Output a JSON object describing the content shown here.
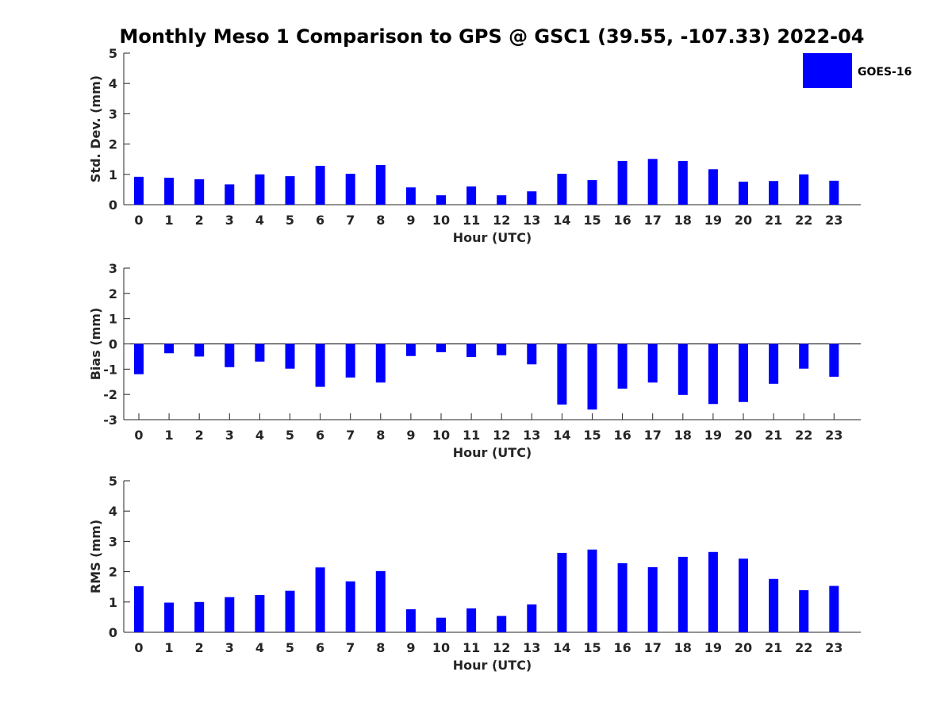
{
  "figure": {
    "title": "Monthly Meso 1 Comparison to GPS @ GSC1 (39.55, -107.33) 2022-04"
  },
  "legend": {
    "label": "GOES-16",
    "color": "#0000ff"
  },
  "chart_data": [
    {
      "type": "bar",
      "xlabel": "Hour (UTC)",
      "ylabel": "Std. Dev. (mm)",
      "ylim": [
        0,
        5
      ],
      "yticks": [
        0,
        1,
        2,
        3,
        4,
        5
      ],
      "categories": [
        "0",
        "1",
        "2",
        "3",
        "4",
        "5",
        "6",
        "7",
        "8",
        "9",
        "10",
        "11",
        "12",
        "13",
        "14",
        "15",
        "16",
        "17",
        "18",
        "19",
        "20",
        "21",
        "22",
        "23"
      ],
      "series": [
        {
          "name": "GOES-16",
          "color": "#0000ff",
          "values": [
            0.92,
            0.89,
            0.84,
            0.67,
            1.0,
            0.94,
            1.28,
            1.02,
            1.31,
            0.57,
            0.31,
            0.6,
            0.31,
            0.44,
            1.02,
            0.81,
            1.44,
            1.51,
            1.44,
            1.17,
            0.76,
            0.78,
            1.0,
            0.79
          ]
        }
      ]
    },
    {
      "type": "bar",
      "xlabel": "Hour (UTC)",
      "ylabel": "Bias (mm)",
      "ylim": [
        -3,
        3
      ],
      "yticks": [
        -3,
        -2,
        -1,
        0,
        1,
        2,
        3
      ],
      "categories": [
        "0",
        "1",
        "2",
        "3",
        "4",
        "5",
        "6",
        "7",
        "8",
        "9",
        "10",
        "11",
        "12",
        "13",
        "14",
        "15",
        "16",
        "17",
        "18",
        "19",
        "20",
        "21",
        "22",
        "23"
      ],
      "series": [
        {
          "name": "GOES-16",
          "color": "#0000ff",
          "values": [
            -1.2,
            -0.37,
            -0.5,
            -0.92,
            -0.7,
            -0.98,
            -1.7,
            -1.33,
            -1.53,
            -0.48,
            -0.33,
            -0.52,
            -0.45,
            -0.81,
            -2.4,
            -2.6,
            -1.77,
            -1.53,
            -2.02,
            -2.38,
            -2.3,
            -1.58,
            -0.98,
            -1.3
          ]
        }
      ]
    },
    {
      "type": "bar",
      "xlabel": "Hour (UTC)",
      "ylabel": "RMS (mm)",
      "ylim": [
        0,
        5
      ],
      "yticks": [
        0,
        1,
        2,
        3,
        4,
        5
      ],
      "categories": [
        "0",
        "1",
        "2",
        "3",
        "4",
        "5",
        "6",
        "7",
        "8",
        "9",
        "10",
        "11",
        "12",
        "13",
        "14",
        "15",
        "16",
        "17",
        "18",
        "19",
        "20",
        "21",
        "22",
        "23"
      ],
      "series": [
        {
          "name": "GOES-16",
          "color": "#0000ff",
          "values": [
            1.52,
            0.98,
            1.0,
            1.16,
            1.23,
            1.37,
            2.14,
            1.68,
            2.02,
            0.76,
            0.48,
            0.79,
            0.54,
            0.92,
            2.62,
            2.73,
            2.28,
            2.15,
            2.49,
            2.65,
            2.43,
            1.76,
            1.39,
            1.53
          ]
        }
      ]
    }
  ]
}
